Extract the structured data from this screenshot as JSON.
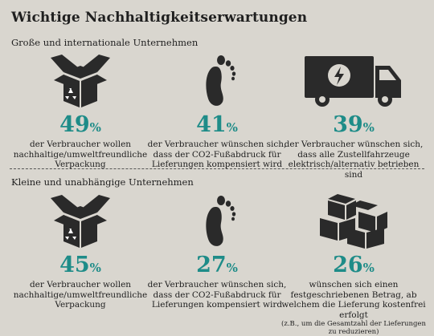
{
  "title": "Wichtige Nachhaltigkeitserwartungen",
  "sections": [
    {
      "label": "Große und internationale Unternehmen",
      "stats": [
        {
          "icon": "recycling-box-icon",
          "value": "49",
          "unit": "%",
          "text": "der Verbraucher wollen nachhaltige/umweltfreundliche Verpackung"
        },
        {
          "icon": "footprint-icon",
          "value": "41",
          "unit": "%",
          "text": "der Verbraucher wünschen sich, dass der CO2-Fußabdruck für Lieferungen kompensiert wird"
        },
        {
          "icon": "electric-van-icon",
          "value": "39",
          "unit": "%",
          "text": "der Verbraucher wünschen sich, dass alle Zustellfahrzeuge elektrisch/alternativ betrieben sind"
        }
      ]
    },
    {
      "label": "Kleine und unabhängige Unternehmen",
      "stats": [
        {
          "icon": "recycling-box-icon",
          "value": "45",
          "unit": "%",
          "text": "der Verbraucher wollen nachhaltige/umweltfreundliche Verpackung"
        },
        {
          "icon": "footprint-icon",
          "value": "27",
          "unit": "%",
          "text": "der Verbraucher wünschen sich, dass der CO2-Fußabdruck für Lieferungen kompensiert wird"
        },
        {
          "icon": "stacked-boxes-icon",
          "value": "26",
          "unit": "%",
          "text": "wünschen sich einen festgeschriebenen Betrag, ab welchem die Lieferung kostenfrei erfolgt",
          "note": "(z.B., um die Gesamtzahl der Lieferungen zu reduzieren)"
        }
      ]
    }
  ],
  "colors": {
    "accent": "#1e8c88",
    "icon": "#2a2a2a",
    "background": "#d9d6cf"
  }
}
